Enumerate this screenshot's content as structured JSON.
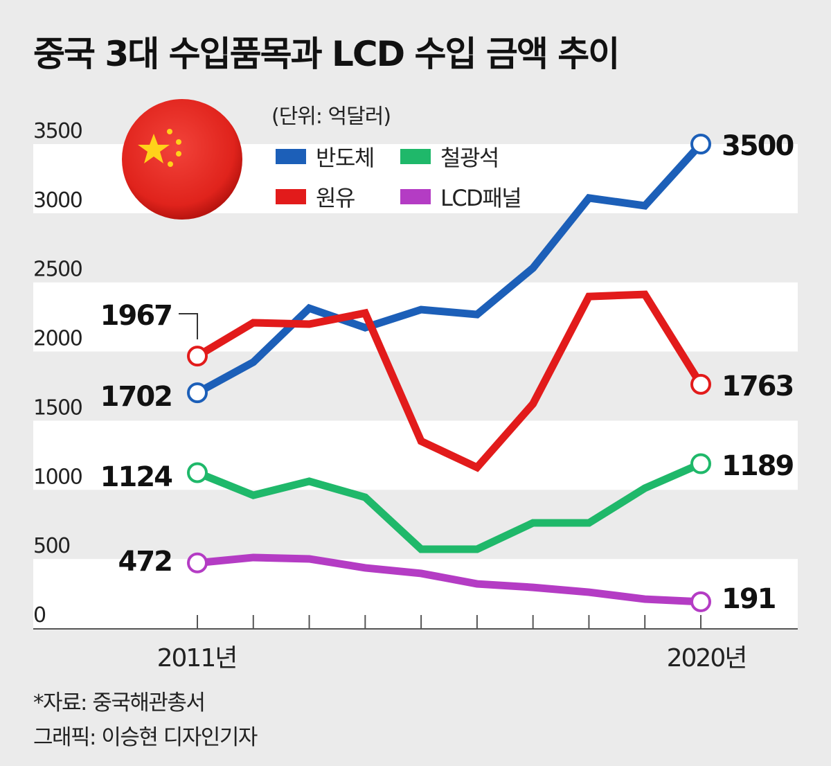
{
  "chart_data": {
    "type": "line",
    "title": "중국 3대 수입품목과 LCD 수입 금액 추이",
    "unit": "(단위: 억달러)",
    "x": [
      2011,
      2012,
      2013,
      2014,
      2015,
      2016,
      2017,
      2018,
      2019,
      2020
    ],
    "x_tick_labels": [
      "2011년",
      "2020년"
    ],
    "y_ticks": [
      "0",
      "500",
      "1000",
      "1500",
      "2000",
      "2500",
      "3000",
      "3500"
    ],
    "ylim": [
      0,
      3500
    ],
    "grid": "alternating bands",
    "legend_position": "top",
    "series": [
      {
        "name": "반도체",
        "color": "#1c5fb8",
        "values": [
          1702,
          1923,
          2313,
          2173,
          2303,
          2268,
          2604,
          3110,
          3054,
          3500
        ],
        "start_label": "1702",
        "end_label": "3500"
      },
      {
        "name": "원유",
        "color": "#e21b1b",
        "values": [
          1967,
          2208,
          2198,
          2278,
          1352,
          1162,
          1622,
          2398,
          2413,
          1763
        ],
        "start_label": "1967",
        "end_label": "1763"
      },
      {
        "name": "철광석",
        "color": "#1fb86a",
        "values": [
          1124,
          961,
          1062,
          946,
          571,
          571,
          761,
          761,
          1012,
          1189
        ],
        "start_label": "1124",
        "end_label": "1189"
      },
      {
        "name": "LCD패널",
        "color": "#b43cc4",
        "values": [
          472,
          511,
          501,
          436,
          396,
          320,
          295,
          260,
          210,
          191
        ],
        "start_label": "472",
        "end_label": "191"
      }
    ]
  },
  "notes": {
    "source": "*자료: 중국해관총서",
    "credit": "그래픽: 이승현 디자인기자"
  },
  "flag_icon": "china-flag-icon"
}
